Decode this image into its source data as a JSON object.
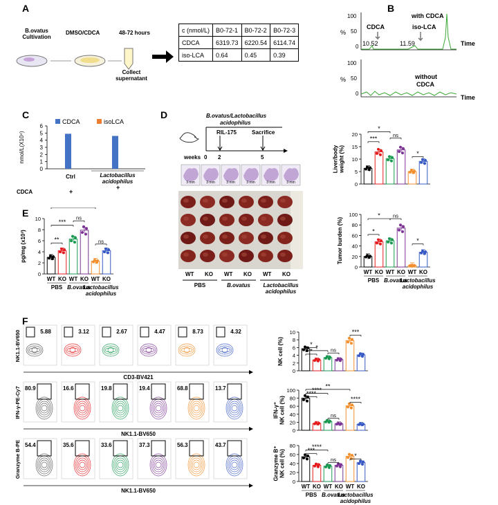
{
  "panels": [
    "A",
    "B",
    "C",
    "D",
    "E",
    "F"
  ],
  "panel_a": {
    "steps": [
      "B.ovatus Cultivation",
      "DMSO/CDCA",
      "48-72 hours",
      "Collect supernatant"
    ],
    "table": {
      "header": [
        "c (nmol/L)",
        "B0-72-1",
        "B0-72-2",
        "B0-72-3"
      ],
      "rows": [
        [
          "CDCA",
          "6319.73",
          "6220.54",
          "6114.74"
        ],
        [
          "iso-LCA",
          "0.64",
          "0.45",
          "0.39"
        ]
      ]
    }
  },
  "panel_b": {
    "top_label": "with CDCA",
    "bottom_label": "without CDCA",
    "peak1": "CDCA",
    "peak2": "iso-LCA",
    "rt1": "10.52",
    "rt2": "11.59",
    "ylabel": "%",
    "xlabel": "Time",
    "yticks": [
      "100",
      "50",
      "0"
    ]
  },
  "chart_data": [
    {
      "id": "C",
      "type": "bar",
      "ylabel": "nmol/L(X10⁴)",
      "ylim": [
        0,
        6
      ],
      "yticks": [
        "0",
        "1",
        "2",
        "3",
        "4",
        "5",
        "6"
      ],
      "categories": [
        "Ctrl",
        "Lactobacillus acidophilus"
      ],
      "series": [
        {
          "name": "CDCA",
          "color": "#4472c4",
          "values": [
            4.9,
            4.6
          ]
        },
        {
          "name": "isoLCA",
          "color": "#ed7d31",
          "values": [
            0,
            0
          ]
        }
      ],
      "row_label": "CDCA",
      "row_marks": [
        "+",
        "+"
      ]
    },
    {
      "id": "D-liver",
      "type": "bar",
      "ylabel": "Liver/body weight (%)",
      "ylim": [
        0,
        20
      ],
      "yticks": [
        "0",
        "5",
        "10",
        "15",
        "20"
      ],
      "categories": [
        "WT",
        "KO",
        "WT",
        "KO",
        "WT",
        "KO"
      ],
      "values": [
        6.3,
        12.9,
        10.2,
        13.7,
        5.0,
        9.1
      ],
      "colors": [
        "#000000",
        "#e41a1c",
        "#1a9850",
        "#7b3294",
        "#f28e2b",
        "#3658c4"
      ],
      "groups": [
        "PBS",
        "B.ovatus",
        "Lactobacillus acidophilus"
      ],
      "sig": [
        "***",
        "*",
        "ns",
        "*"
      ]
    },
    {
      "id": "D-tumor",
      "type": "bar",
      "ylabel": "Tumor burden (%)",
      "ylim": [
        0,
        100
      ],
      "yticks": [
        "0",
        "20",
        "40",
        "60",
        "80",
        "100"
      ],
      "categories": [
        "WT",
        "KO",
        "WT",
        "KO",
        "WT",
        "KO"
      ],
      "values": [
        20,
        48,
        50,
        74,
        3,
        28
      ],
      "colors": [
        "#000000",
        "#e41a1c",
        "#1a9850",
        "#7b3294",
        "#f28e2b",
        "#3658c4"
      ],
      "groups": [
        "PBS",
        "B.ovatus",
        "Lactobacillus acidophilus"
      ],
      "sig": [
        "*",
        "*",
        "ns",
        "*"
      ]
    },
    {
      "id": "E",
      "type": "bar",
      "ylabel": "pg/mg (x10³)",
      "ylim": [
        0,
        10
      ],
      "yticks": [
        "0",
        "2",
        "4",
        "6",
        "8",
        "10"
      ],
      "categories": [
        "WT",
        "KO",
        "WT",
        "KO",
        "WT",
        "KO"
      ],
      "values": [
        3.0,
        4.2,
        6.3,
        7.9,
        2.3,
        4.2
      ],
      "colors": [
        "#000000",
        "#e41a1c",
        "#1a9850",
        "#7b3294",
        "#f28e2b",
        "#3658c4"
      ],
      "groups": [
        "PBS",
        "B.ovatus",
        "Lactobacillus acidophilus"
      ],
      "sig": [
        "ns",
        "***",
        "**",
        "ns",
        "ns"
      ]
    },
    {
      "id": "F-nk",
      "type": "bar",
      "ylabel": "NK cell (%)",
      "ylim": [
        0,
        10
      ],
      "yticks": [
        "0",
        "2",
        "4",
        "6",
        "8",
        "10"
      ],
      "categories": [
        "WT",
        "KO",
        "WT",
        "KO",
        "WT",
        "KO"
      ],
      "values": [
        5.7,
        2.8,
        3.4,
        2.9,
        7.8,
        4.1
      ],
      "colors": [
        "#000000",
        "#e41a1c",
        "#1a9850",
        "#7b3294",
        "#f28e2b",
        "#3658c4"
      ],
      "sig": [
        "*",
        "*",
        "*",
        "ns",
        "***"
      ]
    },
    {
      "id": "F-ifn",
      "type": "bar",
      "ylabel": "IFN-γ⁺ NK cell (%)",
      "ylim": [
        0,
        100
      ],
      "yticks": [
        "0",
        "20",
        "40",
        "60",
        "80",
        "100"
      ],
      "categories": [
        "WT",
        "KO",
        "WT",
        "KO",
        "WT",
        "KO"
      ],
      "values": [
        80,
        17,
        22,
        16,
        61,
        15
      ],
      "colors": [
        "#000000",
        "#e41a1c",
        "#1a9850",
        "#7b3294",
        "#f28e2b",
        "#3658c4"
      ],
      "sig": [
        "****",
        "****",
        "**",
        "ns",
        "****"
      ]
    },
    {
      "id": "F-gzmb",
      "type": "bar",
      "ylabel": "Granzyme B⁺ NK cell (%)",
      "ylim": [
        0,
        80
      ],
      "yticks": [
        "0",
        "20",
        "40",
        "60",
        "80"
      ],
      "categories": [
        "WT",
        "KO",
        "WT",
        "KO",
        "WT",
        "KO"
      ],
      "values": [
        55,
        36,
        34,
        36,
        56,
        42
      ],
      "colors": [
        "#000000",
        "#e41a1c",
        "#1a9850",
        "#7b3294",
        "#f28e2b",
        "#3658c4"
      ],
      "groups": [
        "PBS",
        "B.ovatus",
        "Lactobacillus acidophilus"
      ],
      "sig": [
        "***",
        "****",
        "ns",
        "*"
      ]
    }
  ],
  "panel_d": {
    "treatment": "B.ovatus/Lactobacillus acidophilus",
    "rl": "RIL-175",
    "sacrifice": "Sacrifice",
    "weeks_label": "weeks",
    "weeks": [
      "0",
      "2",
      "5"
    ],
    "scale": "3 mm",
    "row_labels": [
      "WT",
      "KO",
      "WT",
      "KO",
      "WT",
      "KO"
    ],
    "groups": [
      "PBS",
      "B.ovatus",
      "Lactobacillus acidophilus"
    ]
  },
  "panel_f": {
    "row1": {
      "yaxis": "NK1.1-BV650",
      "xaxis": "CD3-BV421",
      "values": [
        "5.88",
        "3.12",
        "2.67",
        "4.47",
        "8.73",
        "4.32"
      ]
    },
    "row2": {
      "yaxis": "IFN-γ-PE-Cy7",
      "xaxis": "NK1.1-BV650",
      "values": [
        "80.9",
        "16.6",
        "19.8",
        "19.4",
        "68.8",
        "13.7"
      ]
    },
    "row3": {
      "yaxis": "Granzyme B-PE",
      "xaxis": "NK1.1-BV650",
      "values": [
        "54.4",
        "35.6",
        "33.6",
        "37.3",
        "56.3",
        "43.7"
      ]
    },
    "colors": [
      "#555555",
      "#e41a1c",
      "#1a9850",
      "#7b3294",
      "#f28e2b",
      "#3658c4"
    ]
  }
}
